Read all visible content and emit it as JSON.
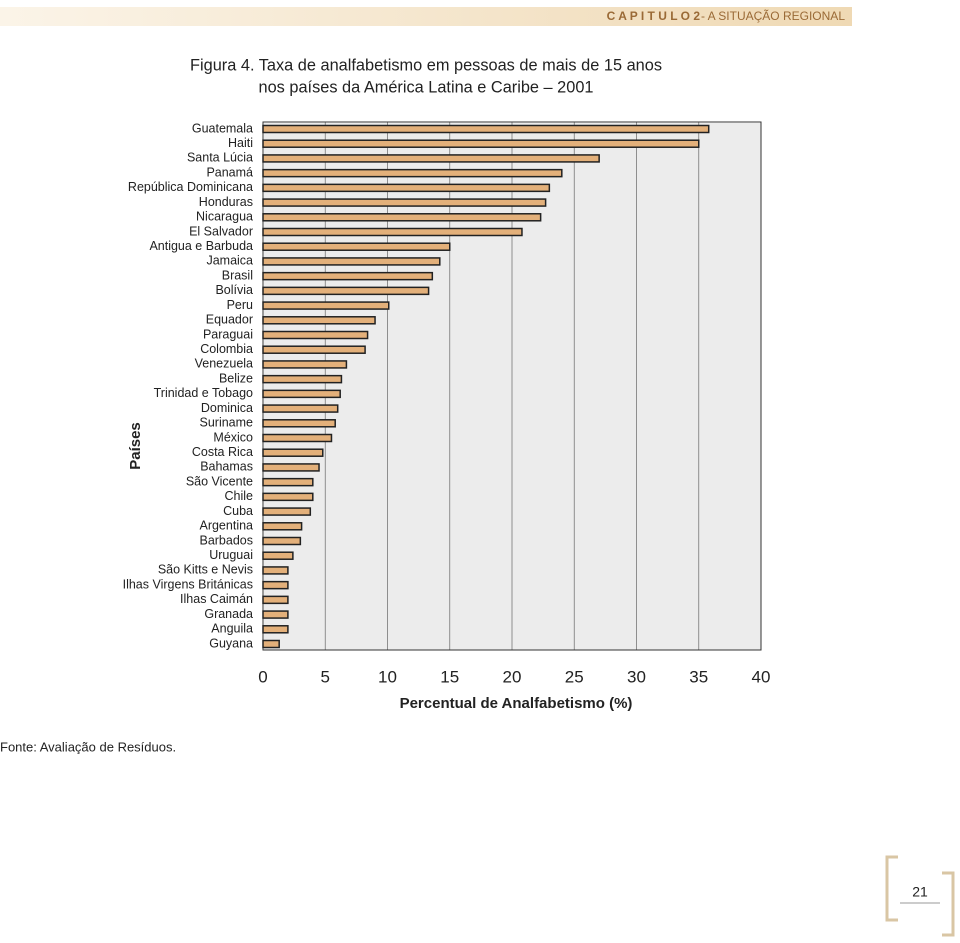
{
  "header": {
    "chapter": "C A P I T U L O   2",
    "section": "- A SITUAÇÃO REGIONAL"
  },
  "chart_data": {
    "type": "hbar",
    "title": [
      "Figura 4. Taxa de analfabetismo em pessoas de mais de 15 anos",
      "nos países da América Latina e Caribe – 2001"
    ],
    "xlabel": "Percentual de Analfabetismo (%)",
    "ylabel": "Países",
    "categories": [
      "Guatemala",
      "Haiti",
      "Santa Lúcia",
      "Panamá",
      "República Dominicana",
      "Honduras",
      "Nicaragua",
      "El Salvador",
      "Antigua e Barbuda",
      "Jamaica",
      "Brasil",
      "Bolívia",
      "Peru",
      "Equador",
      "Paraguai",
      "Colombia",
      "Venezuela",
      "Belize",
      "Trinidad e Tobago",
      "Dominica",
      "Suriname",
      "México",
      "Costa Rica",
      "Bahamas",
      "São Vicente",
      "Chile",
      "Cuba",
      "Argentina",
      "Barbados",
      "Uruguai",
      "São Kitts e Nevis",
      "Ilhas Virgens Británicas",
      "Ilhas Caimán",
      "Granada",
      "Anguila",
      "Guyana"
    ],
    "values": [
      35.8,
      35.0,
      27.0,
      24.0,
      23.0,
      22.7,
      22.3,
      20.8,
      15.0,
      14.2,
      13.6,
      13.3,
      10.1,
      9.0,
      8.4,
      8.2,
      6.7,
      6.3,
      6.2,
      6.0,
      5.8,
      5.5,
      4.8,
      4.5,
      4.0,
      4.0,
      3.8,
      3.1,
      3.0,
      2.4,
      2.0,
      2.0,
      2.0,
      2.0,
      2.0,
      1.3
    ],
    "color": "#e3b07a",
    "xlim": [
      0,
      40
    ],
    "xticks": [
      0,
      5,
      10,
      15,
      20,
      25,
      30,
      35,
      40
    ],
    "grid": true
  },
  "source": "Fonte: Avaliação de Resíduos.",
  "page_number": "21"
}
